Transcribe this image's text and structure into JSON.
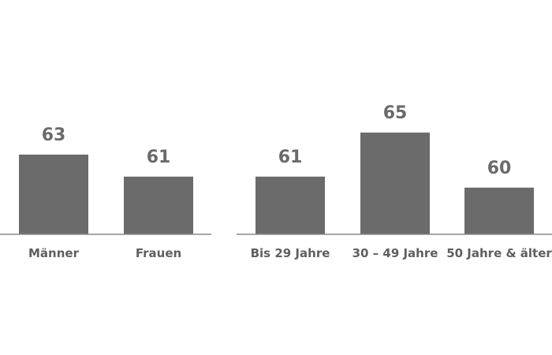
{
  "chart_data": [
    {
      "type": "bar",
      "categories": [
        "Männer",
        "Frauen"
      ],
      "values": [
        63,
        61
      ],
      "bar_color": "#6b6b6b",
      "axis_color": "#8a8a8a"
    },
    {
      "type": "bar",
      "categories": [
        "Bis 29 Jahre",
        "30 – 49 Jahre",
        "50 Jahre & älter"
      ],
      "values": [
        61,
        65,
        60
      ],
      "bar_color": "#6b6b6b",
      "axis_color": "#8a8a8a"
    }
  ]
}
